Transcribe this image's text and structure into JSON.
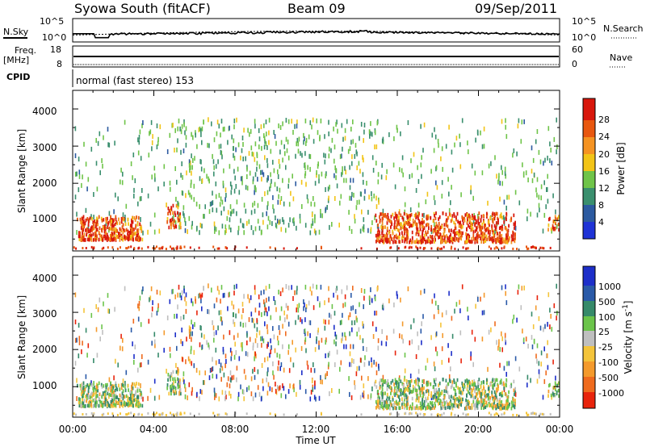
{
  "header": {
    "station": "Syowa South (fitACF)",
    "beam": "Beam 09",
    "date": "09/Sep/2011"
  },
  "noise_panel": {
    "left_label": "N.Sky",
    "right_label": "N.Search",
    "left_ticks": [
      "10^5",
      "10^0"
    ],
    "right_ticks": [
      "10^5",
      "10^0"
    ]
  },
  "freq_panel": {
    "left_label_line1": "Freq.",
    "left_label_line2": "[MHz]",
    "right_label": "Nave",
    "left_ticks": [
      "18",
      "8"
    ],
    "right_ticks": [
      "60",
      "0"
    ]
  },
  "cpid": {
    "label": "CPID",
    "mode_text": "normal (fast stereo) 153"
  },
  "time_axis": {
    "label": "Time UT",
    "ticks": [
      "00:00",
      "04:00",
      "08:00",
      "12:00",
      "16:00",
      "20:00",
      "00:00"
    ]
  },
  "power_panel": {
    "ylabel": "Slant Range [km]",
    "yticks": [
      "1000",
      "2000",
      "3000",
      "4000"
    ],
    "colorbar_label": "Power [dB]",
    "colorbar_ticks": [
      "4",
      "8",
      "12",
      "16",
      "20",
      "24",
      "28"
    ],
    "colors": [
      "#1f33d6",
      "#2c5aa0",
      "#3a8f6e",
      "#6fc449",
      "#f2c417",
      "#f59322",
      "#e8570f",
      "#d8170c"
    ]
  },
  "velocity_panel": {
    "ylabel": "Slant Range [km]",
    "yticks": [
      "1000",
      "2000",
      "3000",
      "4000"
    ],
    "colorbar_label": "Velocity [m s",
    "colorbar_label_sup": "-1",
    "colorbar_ticks": [
      "1000",
      "500",
      "100",
      "25",
      "-25",
      "-100",
      "-500",
      "-1000"
    ],
    "colors": [
      "#1d2fc9",
      "#2a5aa8",
      "#368a6a",
      "#6bc44a",
      "#bfbfbf",
      "#f4c43a",
      "#f49a2c",
      "#ef6b1e",
      "#e8240c"
    ]
  },
  "chart_data": {
    "type": "heatmap",
    "x_range_hours": [
      0,
      24
    ],
    "y_range_km": [
      180,
      4500
    ],
    "series": [
      {
        "name": "Power",
        "units": "dB",
        "range": [
          0,
          30
        ]
      },
      {
        "name": "Velocity",
        "units": "m s^-1",
        "range": [
          -1000,
          1000
        ]
      }
    ]
  }
}
